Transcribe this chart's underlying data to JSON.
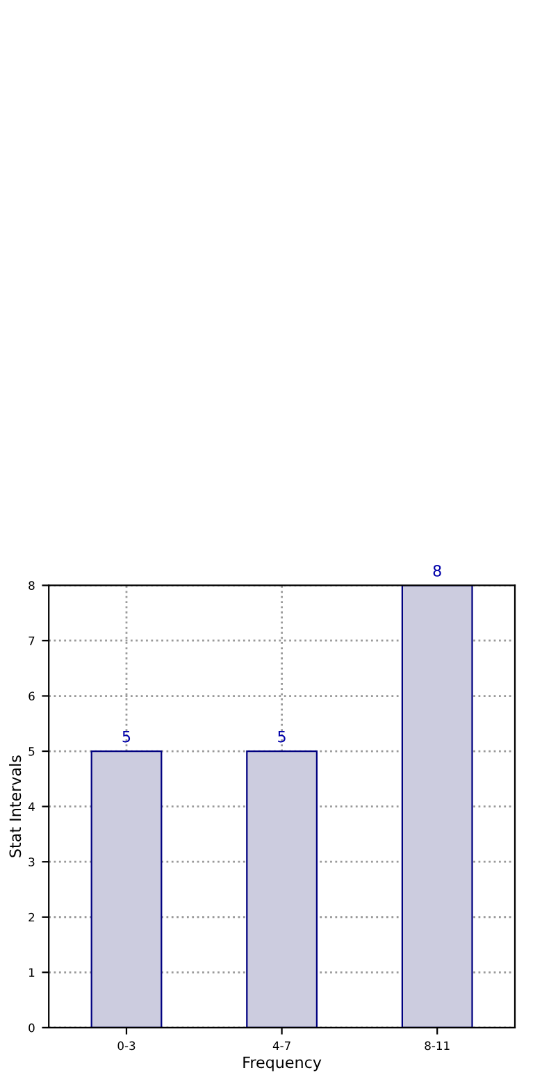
{
  "chart_data": {
    "type": "bar",
    "xlabel": "Frequency",
    "ylabel": "Stat Intervals",
    "categories": [
      "0-3",
      "4-7",
      "8-11"
    ],
    "series": [
      {
        "color": "#ccccdf",
        "values": [
          5,
          5,
          8
        ]
      }
    ],
    "ylim": [
      0,
      8
    ],
    "yticks": [
      0,
      1,
      2,
      3,
      4,
      5,
      6,
      7,
      8
    ],
    "grid": true,
    "data_labels": true
  }
}
